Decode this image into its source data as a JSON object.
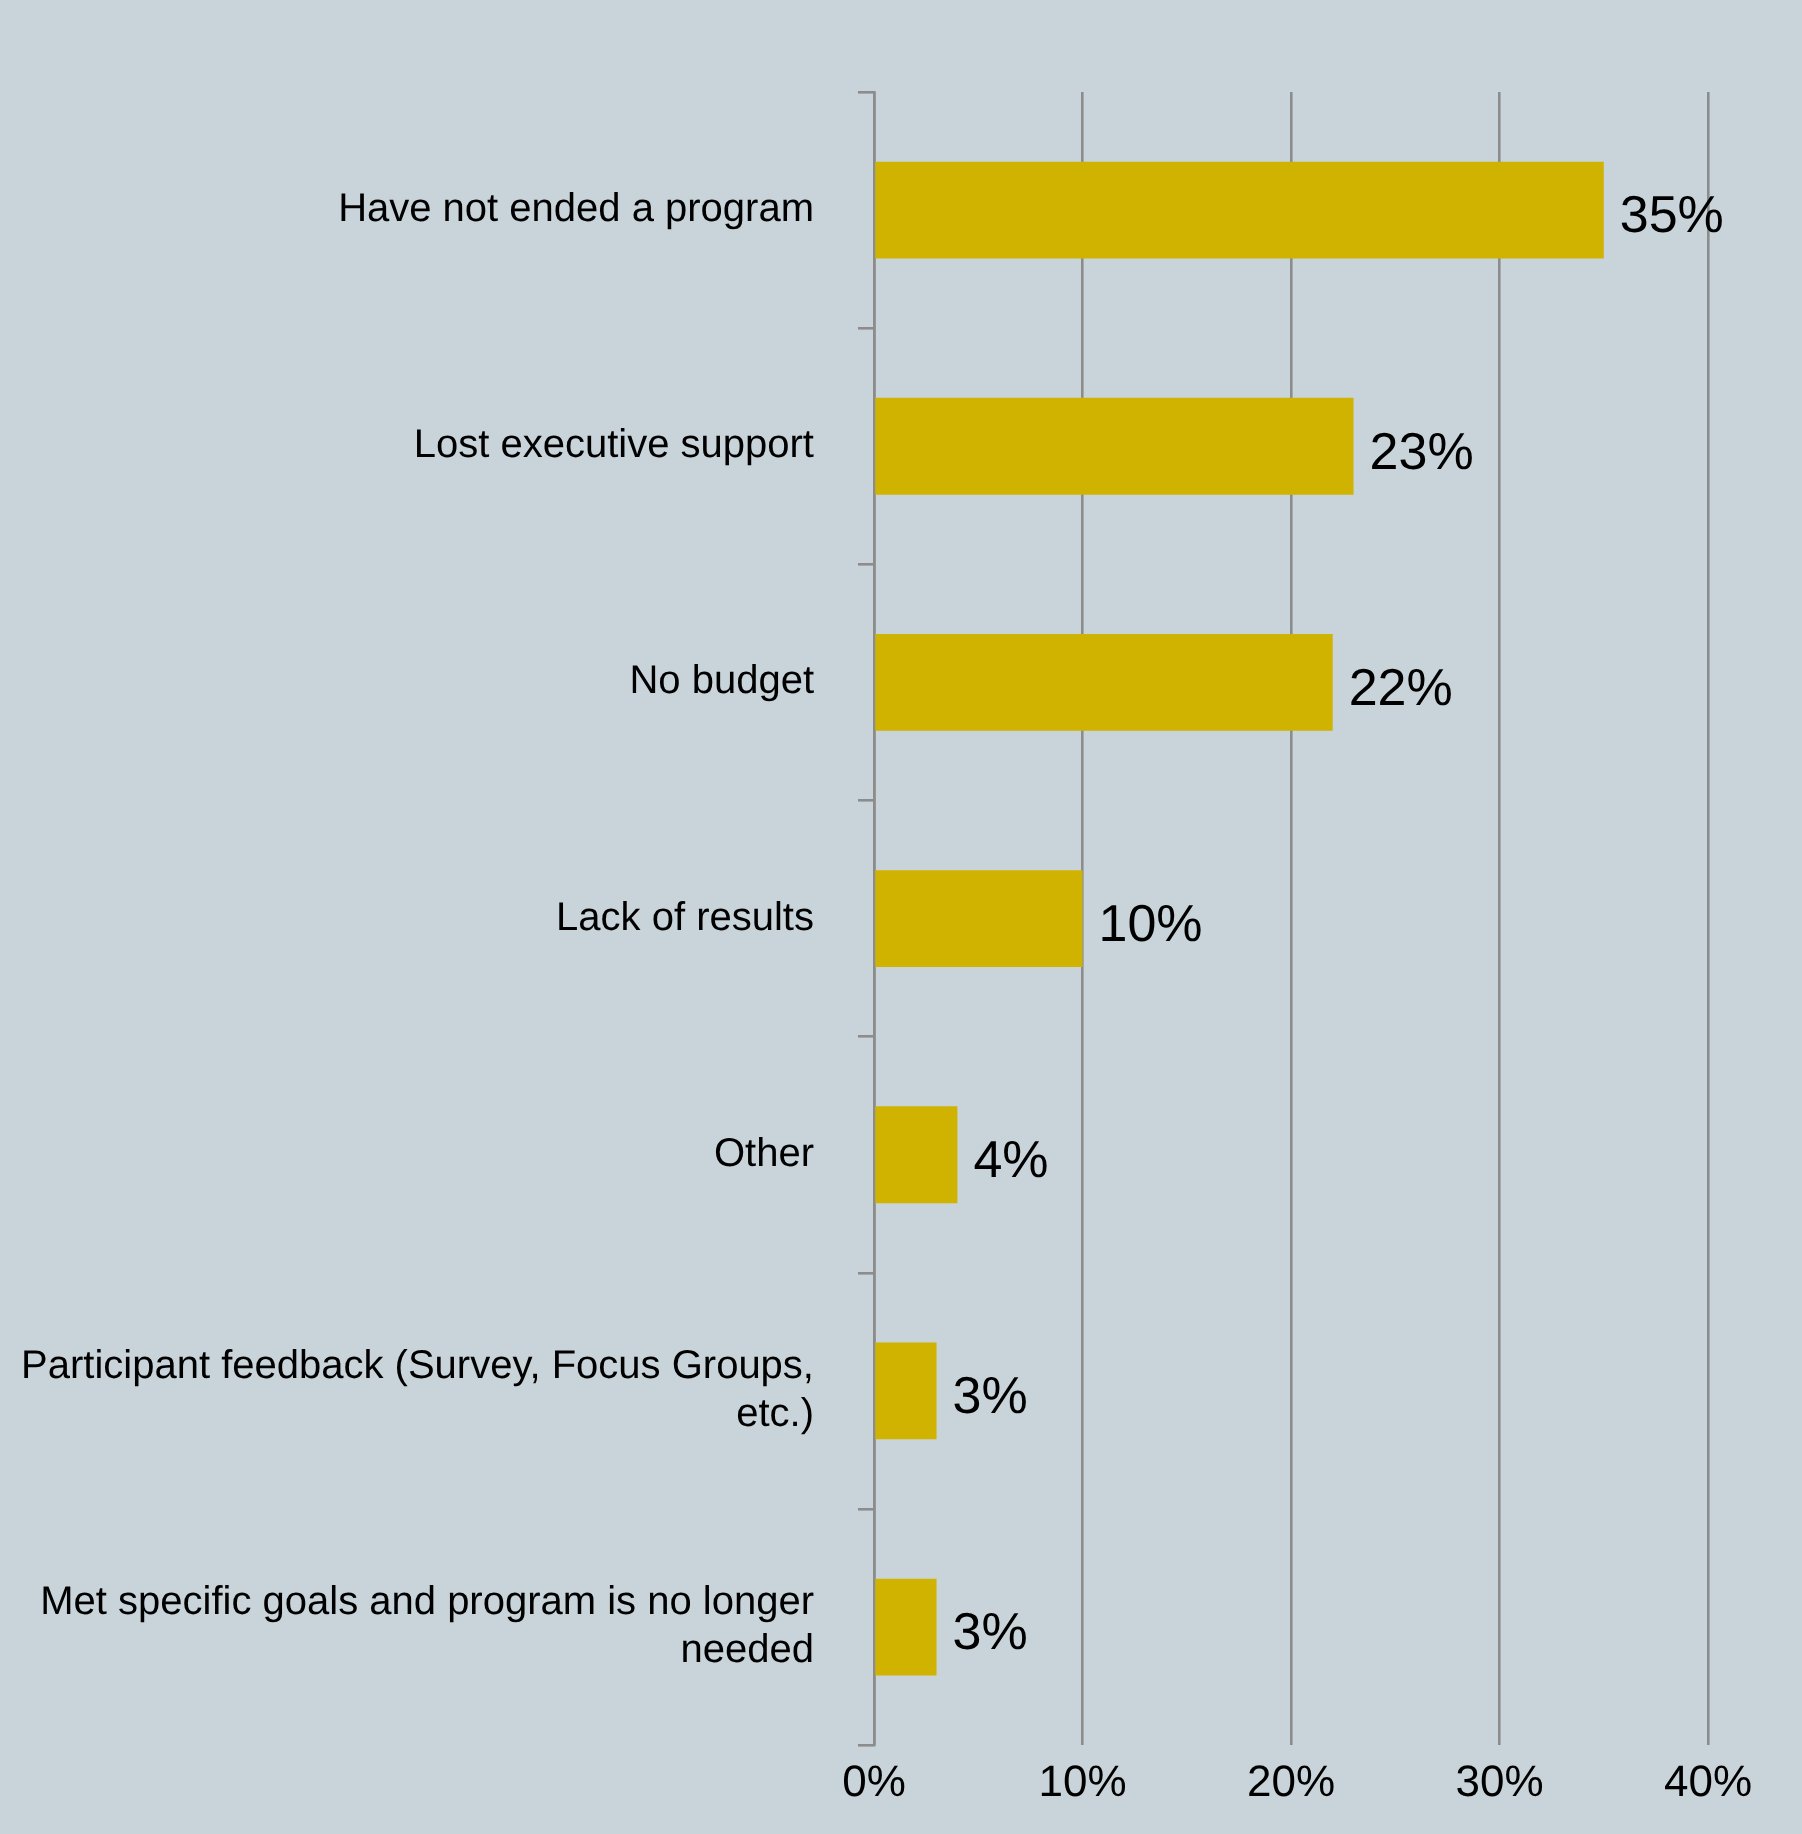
{
  "chart_data": {
    "type": "bar",
    "orientation": "horizontal",
    "categories": [
      "Have not ended a program",
      "Lost executive support",
      "No budget",
      "Lack of results",
      "Other",
      "Participant feedback (Survey, Focus Groups, etc.)",
      "Met specific goals and program is no longer needed"
    ],
    "values": [
      35,
      23,
      22,
      10,
      4,
      3,
      3
    ],
    "value_labels": [
      "35%",
      "23%",
      "22%",
      "10%",
      "4%",
      "3%",
      "3%"
    ],
    "color": "#cfb300",
    "xlim": [
      0,
      40
    ],
    "xticks": [
      {
        "value": 0,
        "label": "0%"
      },
      {
        "value": 10,
        "label": "10%"
      },
      {
        "value": 20,
        "label": "20%"
      },
      {
        "value": 30,
        "label": "30%"
      },
      {
        "value": 40,
        "label": "40%"
      }
    ],
    "grid": "x",
    "legend": false
  }
}
